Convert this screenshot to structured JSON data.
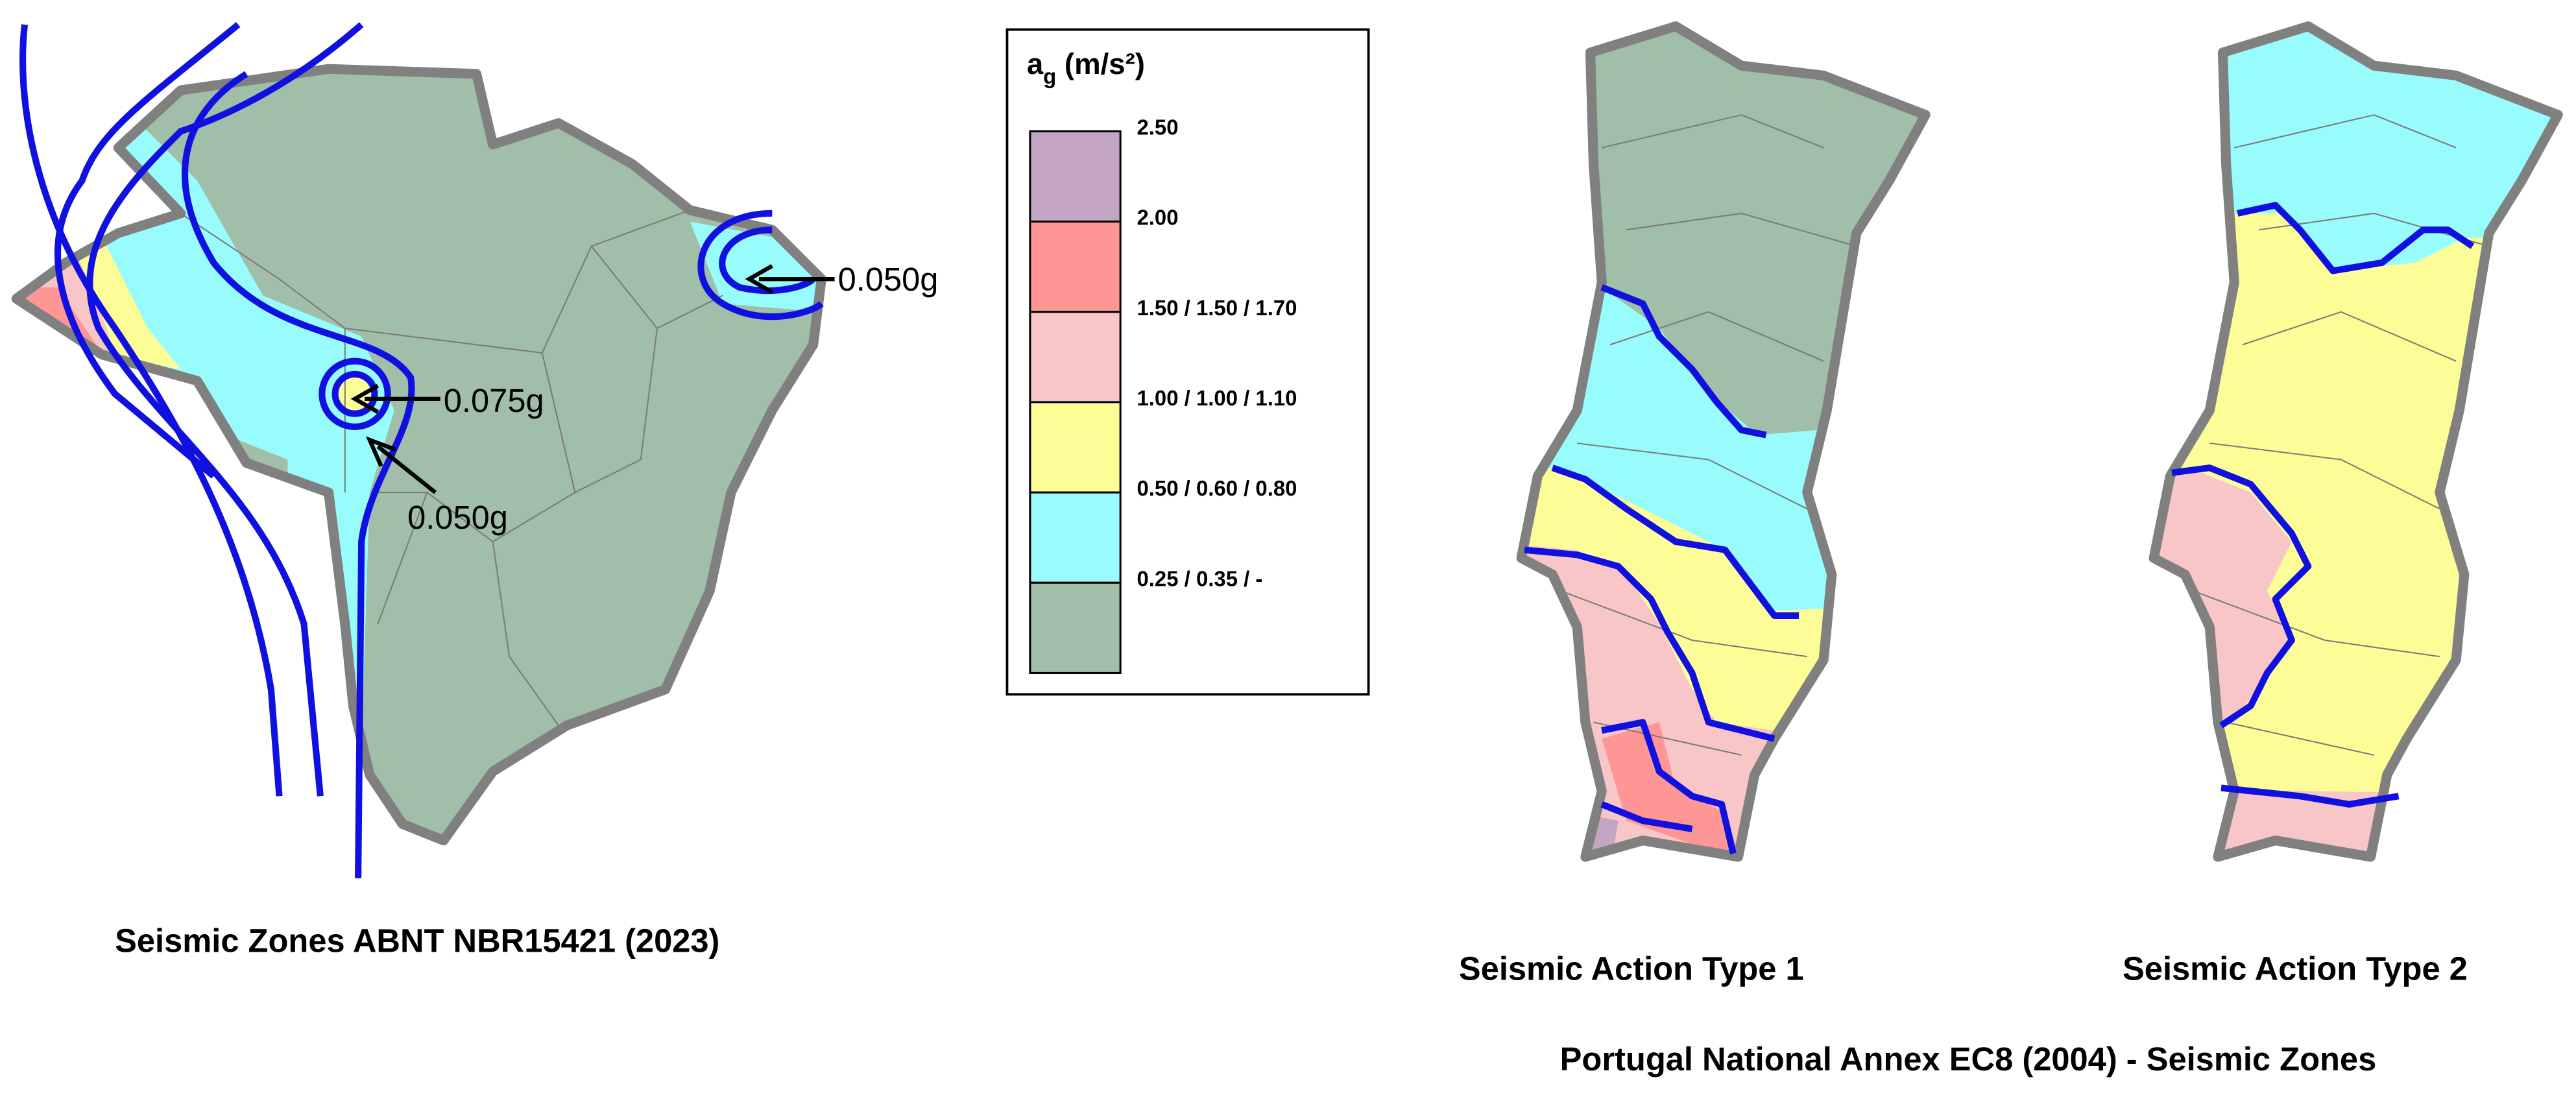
{
  "brazil": {
    "caption": "Seismic Zones ABNT NBR15421 (2023)",
    "annotations": [
      "0.050g",
      "0.075g",
      "0.050g"
    ]
  },
  "legend": {
    "title_symbol": "a",
    "title_subscript": "g",
    "title_unit": "(m/s²)",
    "entries": [
      {
        "label": "2.50",
        "color": "#c2a6c4"
      },
      {
        "label": "2.00",
        "color": "#ff9696"
      },
      {
        "label": "1.50 / 1.50 / 1.70",
        "color": "#f8c6c6"
      },
      {
        "label": "1.00 / 1.00 / 1.10",
        "color": "#fdfd98"
      },
      {
        "label": "0.50 / 0.60 / 0.80",
        "color": "#98fcfc"
      },
      {
        "label": "0.25 / 0.35 /  -",
        "color": "#a0bea8"
      }
    ]
  },
  "portugal": {
    "type1_caption": "Seismic Action Type 1",
    "type2_caption": "Seismic Action Type 2",
    "title": "Portugal National Annex EC8 (2004) - Seismic Zones"
  }
}
